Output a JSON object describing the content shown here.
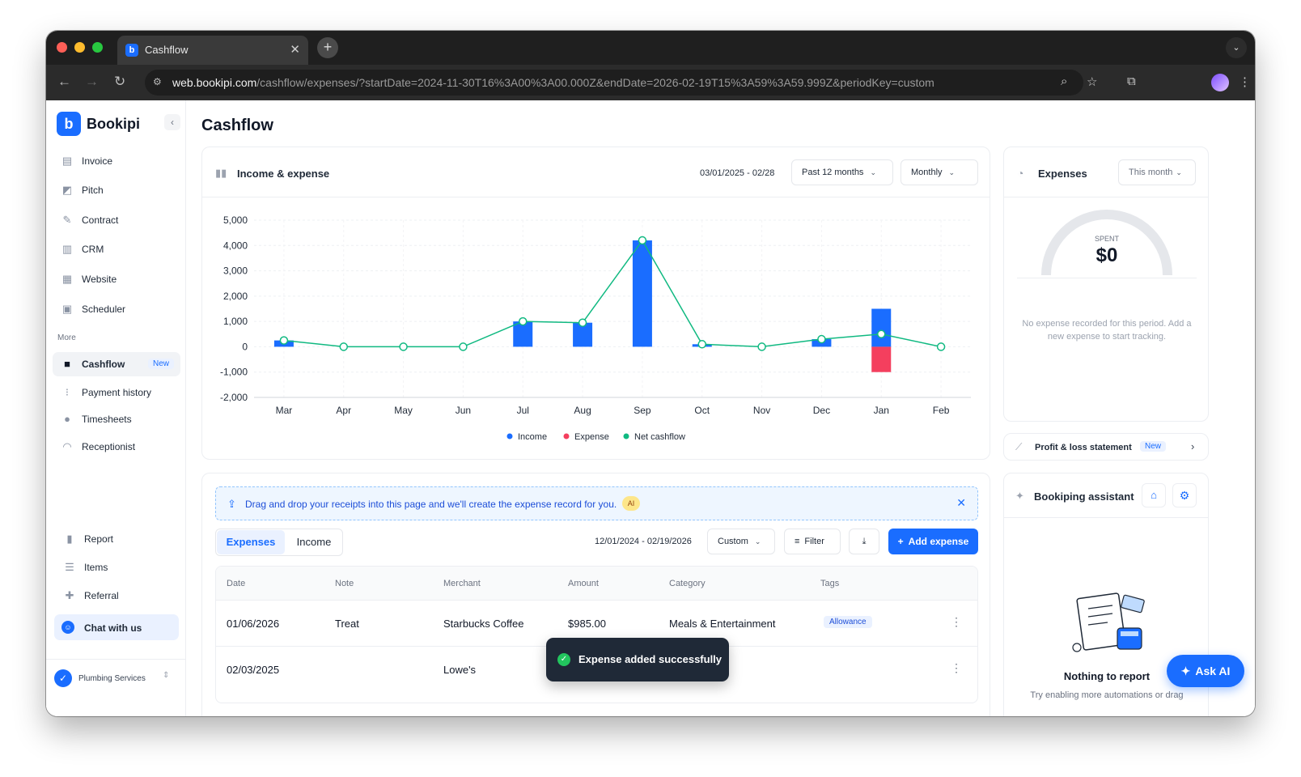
{
  "browser": {
    "tab_title": "Cashflow",
    "url_host": "web.bookipi.com",
    "url_path": "/cashflow/expenses/?startDate=2024-11-30T16%3A00%3A00.000Z&endDate=2026-02-19T15%3A59%3A59.999Z&periodKey=custom"
  },
  "sidebar": {
    "brand": "Bookipi",
    "items": [
      {
        "label": "Invoice",
        "icon": "invoice-icon"
      },
      {
        "label": "Pitch",
        "icon": "pitch-icon"
      },
      {
        "label": "Contract",
        "icon": "contract-icon"
      },
      {
        "label": "CRM",
        "icon": "crm-icon"
      },
      {
        "label": "Website",
        "icon": "website-icon"
      },
      {
        "label": "Scheduler",
        "icon": "scheduler-icon"
      }
    ],
    "more_label": "More",
    "more_items": [
      {
        "label": "Cashflow",
        "badge": "New",
        "active": true
      },
      {
        "label": "Payment history"
      },
      {
        "label": "Timesheets"
      },
      {
        "label": "Receptionist"
      }
    ],
    "bottom_items": [
      {
        "label": "Report"
      },
      {
        "label": "Items"
      },
      {
        "label": "Referral"
      }
    ],
    "chat_label": "Chat with us",
    "workspace": "Plumbing Services"
  },
  "main": {
    "title": "Cashflow"
  },
  "income_expense": {
    "title": "Income & expense",
    "date_range": "03/01/2025 - 02/28",
    "period": "Past 12 months",
    "granularity": "Monthly"
  },
  "chart_data": {
    "type": "bar",
    "title": "Income & expense",
    "categories": [
      "Mar",
      "Apr",
      "May",
      "Jun",
      "Jul",
      "Aug",
      "Sep",
      "Oct",
      "Nov",
      "Dec",
      "Jan",
      "Feb"
    ],
    "series": [
      {
        "name": "Income",
        "type": "bar",
        "color": "#1a6dff",
        "values": [
          250,
          0,
          0,
          0,
          1000,
          950,
          4200,
          100,
          0,
          300,
          1500,
          0
        ]
      },
      {
        "name": "Expense",
        "type": "bar",
        "color": "#f43f5e",
        "values": [
          0,
          0,
          0,
          0,
          0,
          0,
          0,
          0,
          0,
          0,
          -1000,
          0
        ]
      },
      {
        "name": "Net cashflow",
        "type": "line",
        "color": "#10b981",
        "values": [
          250,
          0,
          0,
          0,
          1000,
          950,
          4200,
          100,
          0,
          300,
          500,
          0
        ]
      }
    ],
    "yticks": [
      "5,000",
      "4,000",
      "3,000",
      "2,000",
      "1,000",
      "0",
      "-1,000",
      "-2,000"
    ],
    "ylim": [
      -2000,
      5000
    ],
    "grid": true,
    "legend": "bottom"
  },
  "expenses_card": {
    "title": "Expenses",
    "period": "This month",
    "spent_label": "SPENT",
    "spent_value": "$0",
    "empty_text": "No expense recorded for this period. Add a new expense to start tracking."
  },
  "pl_card": {
    "label": "Profit & loss statement",
    "badge": "New"
  },
  "assistant_card": {
    "title": "Bookiping assistant",
    "empty_title": "Nothing to report",
    "empty_text": "Try enabling more automations or drag"
  },
  "banner": {
    "text": "Drag and drop your receipts into this page and we'll create the expense record for you.",
    "badge": "AI"
  },
  "list": {
    "tabs": [
      "Expenses",
      "Income"
    ],
    "date_range": "12/01/2024 - 02/19/2026",
    "period": "Custom",
    "filter_label": "Filter",
    "add_label": "Add expense",
    "columns": [
      "Date",
      "Note",
      "Merchant",
      "Amount",
      "Category",
      "Tags"
    ],
    "rows": [
      {
        "date": "01/06/2026",
        "note": "Treat",
        "merchant": "Starbucks Coffee",
        "amount": "$985.00",
        "category": "Meals & Entertainment",
        "tag": "Allowance"
      },
      {
        "date": "02/03/2025",
        "note": "",
        "merchant": "Lowe's",
        "amount": "",
        "category": "",
        "tag": ""
      }
    ]
  },
  "toast": {
    "text": "Expense added successfully"
  },
  "ask_ai": {
    "label": "Ask AI"
  }
}
